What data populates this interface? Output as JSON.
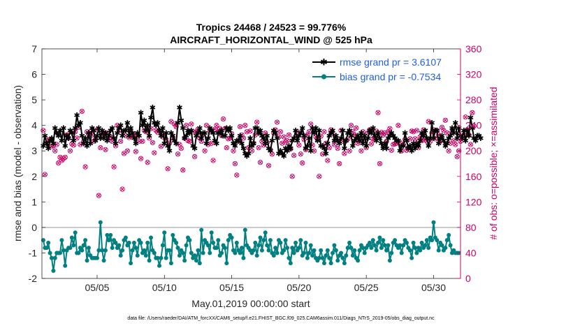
{
  "chart_data": {
    "type": "line",
    "title": "Tropics 24468 / 24523 = 99.776%",
    "subtitle": "AIRCRAFT_HORIZONTAL_WIND @ 525 hPa",
    "xlabel": "May.01,2019 00:00:00 start",
    "ylabel": "rmse and bias (model - observation)",
    "ylabel_right": "# of obs: o=possible; ×=assimilated",
    "footnote": "data file: /Users/raeder/DAI/ATM_forcXX/CAM6_setup/f.e21.FHIST_BGC.f09_025.CAM6assim.011/Diags_NTrS_2019-05/obs_diag_output.nc",
    "xlim": [
      0.9,
      32.0
    ],
    "ylim": [
      -2,
      7
    ],
    "ylim_right": [
      0,
      360
    ],
    "x_ticks": [
      5,
      10,
      15,
      20,
      25,
      30
    ],
    "x_tick_labels": [
      "05/05",
      "05/10",
      "05/15",
      "05/20",
      "05/25",
      "05/30"
    ],
    "y_ticks": [
      -2,
      -1,
      0,
      1,
      2,
      3,
      4,
      5,
      6,
      7
    ],
    "y_tick_labels": [
      "-2",
      "-1",
      "0",
      "1",
      "2",
      "3",
      "4",
      "5",
      "6",
      "7"
    ],
    "y_right_ticks": [
      0,
      40,
      80,
      120,
      160,
      200,
      240,
      280,
      320,
      360
    ],
    "y_right_tick_labels": [
      "0",
      "40",
      "80",
      "120",
      "160",
      "200",
      "240",
      "280",
      "320",
      "360"
    ],
    "zero_line": 0,
    "legend_position": "top-right",
    "colors": {
      "rmse": "#000000",
      "bias": "#008080",
      "obs": "#cc0066",
      "legend_text": "#1f5fe0",
      "zero_line": "#b3b3b3"
    },
    "series": [
      {
        "name": "rmse grand pr = 3.6107",
        "values": [
          3.2,
          3.6,
          3.3,
          3.1,
          3.4,
          3.5,
          3.3,
          3.9,
          3.7,
          3.6,
          3.8,
          3.4,
          3.9,
          3.2,
          3.6,
          3.5,
          3.8,
          3.7,
          3.4,
          3.9,
          4.4,
          4.0,
          4.1,
          3.6,
          3.3,
          3.5,
          3.2,
          3.7,
          3.3,
          3.9,
          3.8,
          3.4,
          3.6,
          3.9,
          3.5,
          3.8,
          3.5,
          3.7,
          3.4,
          3.6,
          3.8,
          3.9,
          3.5,
          3.3,
          3.7,
          3.9,
          4.0,
          3.6,
          3.8,
          3.8,
          4.1,
          3.6,
          3.9,
          3.7,
          3.5,
          3.3,
          3.7,
          3.6,
          4.5,
          4.0,
          4.2,
          3.8,
          4.0,
          3.6,
          4.3,
          4.7,
          4.1,
          4.0,
          4.1,
          3.8,
          3.6,
          3.9,
          3.3,
          3.7,
          3.2,
          3.0,
          3.7,
          3.6,
          3.4,
          3.3,
          4.1,
          4.7,
          4.2,
          3.9,
          3.5,
          3.6,
          3.8,
          3.7,
          3.8,
          3.2,
          3.1,
          3.6,
          3.7,
          3.9,
          3.5,
          3.7,
          3.7,
          3.3,
          3.5,
          3.9,
          3.8,
          3.7,
          3.4,
          3.3,
          3.7,
          3.7,
          3.8,
          3.6,
          3.6,
          3.9,
          3.8,
          3.9,
          3.6,
          3.3,
          3.2,
          3.4,
          3.4,
          3.6,
          3.3,
          3.1,
          2.9,
          2.8,
          2.9,
          3.5,
          3.2,
          3.3,
          3.9,
          3.9,
          3.7,
          3.8,
          3.6,
          3.5,
          3.3,
          3.6,
          3.1,
          3.0,
          3.4,
          3.8,
          3.7,
          3.5,
          2.9,
          3.0,
          2.9,
          2.8,
          3.1,
          3.0,
          3.2,
          3.1,
          3.4,
          3.5,
          3.8,
          3.4,
          3.6,
          3.7,
          3.9,
          3.6,
          3.1,
          3.2,
          3.5,
          3.0,
          3.9,
          3.7,
          3.9,
          3.4,
          3.8,
          3.2,
          3.2,
          3.1,
          2.9,
          3.3,
          3.6,
          3.7,
          3.8,
          3.4,
          3.6,
          3.4,
          3.3,
          3.5,
          3.8,
          3.1,
          3.4,
          3.7,
          3.8,
          3.6,
          3.2,
          3.4,
          3.5,
          3.6,
          3.4,
          3.7,
          3.3,
          3.6,
          3.2,
          3.5,
          3.8,
          3.7,
          3.9,
          3.6,
          3.4,
          3.7,
          3.5,
          3.3,
          3.1,
          3.3,
          3.1,
          3.5,
          3.6,
          3.7,
          3.6,
          3.5,
          3.4,
          3.4,
          3.0,
          3.2,
          3.2,
          3.7,
          3.4,
          3.1,
          3.2,
          3.0,
          3.3,
          3.1,
          3.3,
          3.2,
          3.4,
          3.7,
          3.6,
          3.8,
          3.5,
          3.2,
          3.5,
          4.1,
          3.5,
          3.8,
          3.8,
          3.3,
          3.5,
          3.6,
          3.4,
          3.2,
          3.3,
          3.5,
          3.6,
          3.9,
          3.7,
          4.1,
          3.5,
          3.9,
          3.6,
          3.5,
          3.8,
          3.4,
          3.8,
          3.6,
          4.3,
          3.9,
          3.5,
          3.4,
          3.6,
          3.6,
          3.5
        ]
      },
      {
        "name": "bias grand pr = -0.7534",
        "values": [
          -0.5,
          -0.8,
          -0.8,
          -0.6,
          -1.0,
          -1.2,
          -1.7,
          -1.2,
          -1.0,
          -1.0,
          -1.0,
          -0.5,
          -0.9,
          -1.5,
          -0.9,
          -0.8,
          -0.8,
          -0.4,
          -0.7,
          -0.2,
          -1.0,
          -1.0,
          -0.8,
          -0.9,
          -0.7,
          -0.5,
          -1.3,
          -0.8,
          -1.1,
          -1.2,
          -1.2,
          -1.2,
          -1.2,
          -0.9,
          0.2,
          -0.9,
          -1.3,
          -0.9,
          -0.3,
          -0.5,
          -0.3,
          -0.8,
          -0.5,
          -0.6,
          -0.8,
          -0.7,
          -1.1,
          -0.9,
          -0.5,
          -0.4,
          -0.7,
          -0.6,
          -1.4,
          -0.9,
          -0.6,
          -0.8,
          -1.1,
          -0.5,
          -0.6,
          -1.0,
          -0.9,
          -1.1,
          -0.6,
          -1.3,
          -0.4,
          -0.9,
          -1.0,
          -1.2,
          -1.2,
          -1.5,
          -1.2,
          -0.7,
          -0.2,
          -1.2,
          -0.9,
          -0.9,
          -1.4,
          -0.3,
          -0.5,
          -0.6,
          -0.8,
          -1.1,
          -0.9,
          -1.0,
          -1.3,
          -0.7,
          -0.4,
          -0.5,
          -1.0,
          -1.2,
          -1.1,
          -1.3,
          -0.9,
          -1.4,
          -0.1,
          -1.0,
          -0.5,
          -0.6,
          -0.7,
          -1.0,
          -0.2,
          -0.6,
          -0.8,
          -0.8,
          -0.5,
          -1.1,
          -1.0,
          -0.7,
          -0.8,
          -1.4,
          -0.5,
          -0.3,
          -0.4,
          -0.9,
          -1.0,
          -0.6,
          -0.9,
          -1.0,
          -0.8,
          -1.2,
          -0.1,
          -0.7,
          -0.8,
          -0.9,
          -1.0,
          -0.9,
          -0.6,
          -1.1,
          -0.7,
          -0.4,
          -0.9,
          -0.5,
          -0.2,
          -0.7,
          -0.9,
          -0.5,
          -1.0,
          -1.1,
          -0.8,
          -1.0,
          -0.5,
          -0.6,
          -1.0,
          -0.9,
          -0.5,
          -0.8,
          -1.2,
          -1.4,
          -0.8,
          -1.0,
          -0.6,
          -0.9,
          -0.8,
          -0.5,
          -1.1,
          -1.0,
          -0.6,
          -1.2,
          -1.0,
          -0.7,
          -1.1,
          -0.9,
          -1.2,
          -1.3,
          -1.2,
          -0.9,
          -1.2,
          -1.4,
          -1.1,
          -0.9,
          -1.2,
          -1.4,
          -1.0,
          -0.7,
          -0.9,
          -1.3,
          -1.1,
          -1.0,
          -1.2,
          -1.4,
          -1.1,
          -0.8,
          -0.6,
          -0.8,
          -1.1,
          -0.9,
          -1.2,
          -1.3,
          -0.9,
          -0.7,
          -0.8,
          -1.0,
          -0.8,
          -0.7,
          -0.6,
          -0.8,
          -0.5,
          -0.7,
          -0.9,
          -0.6,
          -0.4,
          -0.8,
          -0.5,
          -0.7,
          -0.9,
          -0.7,
          -1.3,
          -1.0,
          -0.6,
          -0.5,
          -0.7,
          -0.8,
          -0.7,
          -1.0,
          -0.7,
          -0.5,
          -0.6,
          -0.8,
          -0.9,
          -1.2,
          -0.6,
          -0.8,
          -1.0,
          -0.8,
          -0.9,
          -0.6,
          -0.8,
          -0.7,
          -0.5,
          -0.8,
          -0.4,
          -0.5,
          0.2,
          -0.4,
          -0.5,
          -0.9,
          -0.6,
          -0.7,
          -0.9,
          -0.8,
          -0.5,
          -0.3,
          -0.7,
          -1.0,
          -0.9,
          -1.0,
          -1.0,
          -1.0
        ]
      }
    ],
    "obs_possible": [
      232,
      163,
      212,
      217,
      218,
      207,
      208,
      200,
      210,
      181,
      190,
      185,
      188,
      190,
      225,
      220,
      200,
      211,
      209,
      230,
      220,
      237,
      210,
      262,
      215,
      175,
      230,
      226,
      230,
      225,
      215,
      218,
      233,
      130,
      205,
      225,
      228,
      202,
      228,
      220,
      222,
      215,
      175,
      208,
      240,
      232,
      215,
      140,
      196,
      224,
      200,
      221,
      230,
      222,
      225,
      199,
      223,
      215,
      188,
      215,
      232,
      230,
      182,
      220,
      235,
      213,
      197,
      232,
      229,
      232,
      207,
      222,
      224,
      218,
      172,
      212,
      246,
      220,
      242,
      238,
      195,
      210,
      204,
      170,
      220,
      240,
      216,
      215,
      242,
      230,
      191,
      230,
      234,
      220,
      215,
      226,
      200,
      240,
      210,
      230,
      212,
      185,
      234,
      240,
      230,
      235,
      224,
      250,
      235,
      205,
      219,
      220,
      227,
      200,
      180,
      162,
      215,
      238,
      225,
      220,
      240,
      230,
      205,
      231,
      200,
      212,
      225,
      245,
      205,
      182,
      215,
      209,
      228,
      213,
      177,
      202,
      195,
      228,
      233,
      245,
      222,
      230,
      212,
      222,
      214,
      216,
      225,
      203,
      160,
      193,
      222,
      230,
      209,
      195,
      181,
      218,
      202,
      225,
      230,
      242,
      209,
      200,
      222,
      218,
      160,
      223,
      195,
      230,
      212,
      185,
      205,
      233,
      227,
      210,
      220,
      204,
      180,
      232,
      215,
      196,
      216,
      219,
      200,
      240,
      230,
      225,
      236,
      212,
      218,
      200,
      230,
      219,
      205,
      228,
      233,
      211,
      219,
      218,
      231,
      260,
      180,
      229,
      225,
      228,
      215,
      230,
      235,
      201,
      210,
      211,
      212,
      240,
      213,
      200,
      210,
      218,
      201,
      205,
      219,
      231,
      230,
      219,
      232,
      205,
      222,
      216,
      233,
      218,
      215,
      246,
      215,
      228,
      233,
      219,
      232,
      225,
      215,
      237,
      232,
      248,
      228,
      200,
      212,
      230,
      216,
      210,
      191,
      200,
      215,
      220,
      225,
      253,
      233,
      225,
      210,
      260,
      239
    ],
    "obs_assimilated": [
      232,
      163,
      212,
      217,
      218,
      207,
      208,
      200,
      210,
      181,
      190,
      185,
      188,
      190,
      225,
      220,
      200,
      211,
      209,
      230,
      220,
      237,
      210,
      262,
      215,
      175,
      230,
      226,
      230,
      225,
      215,
      218,
      233,
      130,
      205,
      225,
      228,
      202,
      228,
      220,
      222,
      215,
      175,
      208,
      240,
      232,
      215,
      140,
      196,
      224,
      200,
      221,
      230,
      222,
      225,
      199,
      223,
      215,
      188,
      215,
      232,
      230,
      182,
      220,
      235,
      213,
      197,
      232,
      229,
      232,
      207,
      222,
      224,
      218,
      172,
      212,
      246,
      220,
      242,
      238,
      195,
      210,
      204,
      170,
      220,
      240,
      216,
      215,
      242,
      230,
      191,
      230,
      234,
      220,
      215,
      226,
      200,
      240,
      210,
      230,
      212,
      185,
      234,
      240,
      230,
      235,
      224,
      250,
      235,
      205,
      219,
      220,
      227,
      200,
      180,
      162,
      215,
      238,
      225,
      220,
      240,
      230,
      205,
      231,
      200,
      212,
      225,
      245,
      205,
      182,
      215,
      209,
      228,
      213,
      177,
      202,
      195,
      228,
      233,
      245,
      222,
      230,
      212,
      222,
      214,
      216,
      225,
      203,
      160,
      193,
      222,
      230,
      209,
      195,
      181,
      218,
      202,
      225,
      230,
      242,
      209,
      200,
      222,
      218,
      160,
      223,
      195,
      230,
      212,
      185,
      205,
      233,
      227,
      210,
      220,
      204,
      180,
      232,
      215,
      196,
      216,
      219,
      200,
      240,
      230,
      225,
      236,
      212,
      218,
      200,
      230,
      219,
      205,
      228,
      233,
      211,
      219,
      218,
      231,
      260,
      180,
      229,
      225,
      228,
      215,
      230,
      235,
      201,
      210,
      211,
      212,
      240,
      213,
      200,
      210,
      218,
      201,
      205,
      219,
      231,
      230,
      219,
      232,
      205,
      222,
      216,
      233,
      218,
      215,
      246,
      215,
      228,
      233,
      219,
      232,
      225,
      215,
      237,
      232,
      248,
      228,
      200,
      212,
      230,
      216,
      210,
      191,
      200,
      215,
      220,
      225,
      253,
      233,
      225,
      210,
      260,
      239
    ]
  }
}
